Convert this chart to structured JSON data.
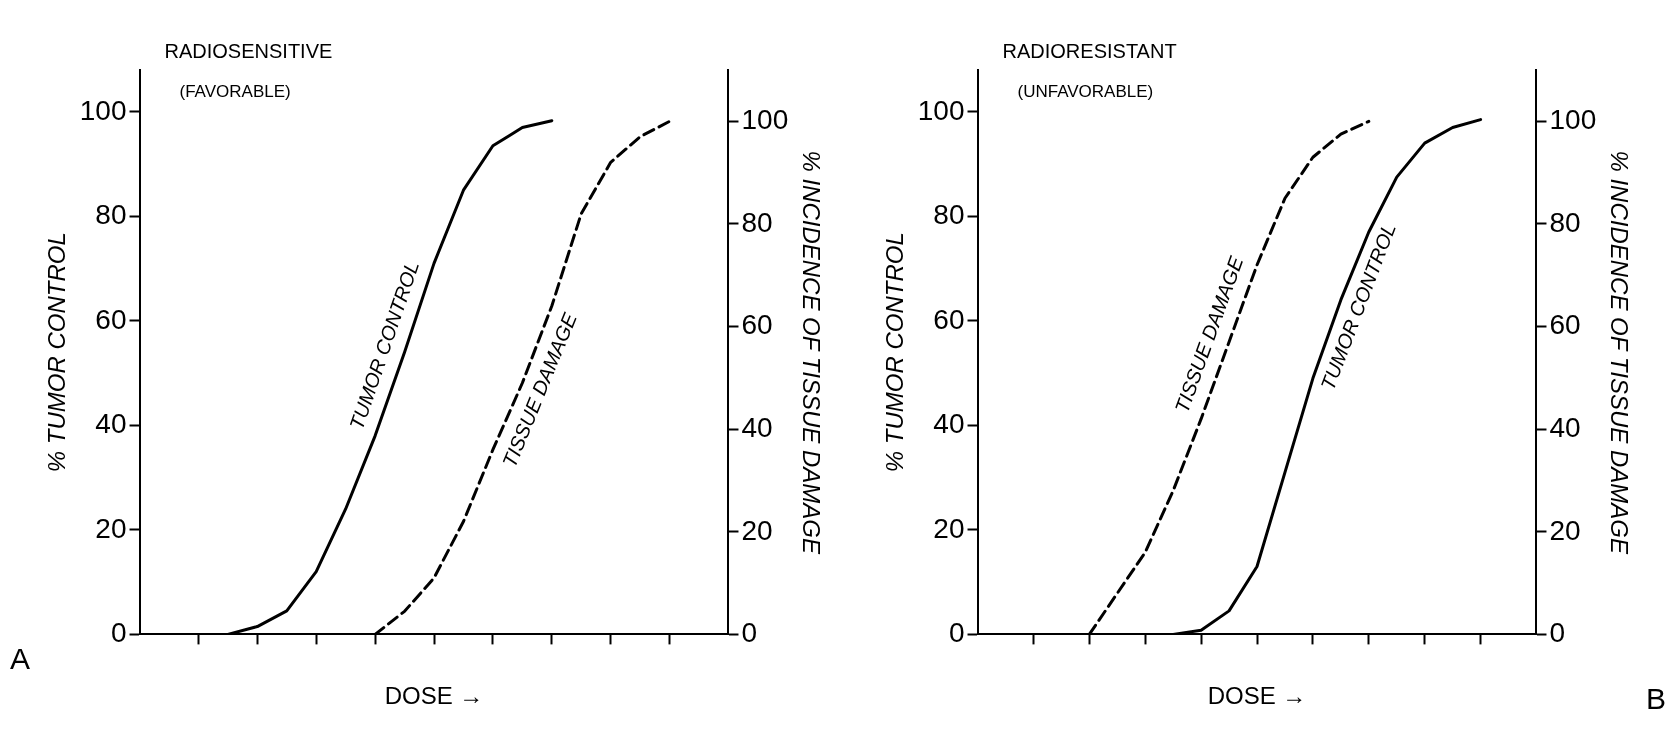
{
  "chart_data": [
    {
      "type": "line",
      "title": "RADIOSENSITIVE",
      "subtitle": "(FAVORABLE)",
      "xlabel": "DOSE →",
      "ylabel": "% TUMOR CONTROL",
      "y2label": "% INCIDENCE OF TISSUE DAMAGE",
      "annotations": [
        "A"
      ],
      "categories": [
        null,
        null,
        null,
        null,
        null,
        null,
        null,
        null,
        null,
        null,
        null,
        null,
        null,
        null,
        null,
        null,
        null,
        null,
        null,
        null,
        null
      ],
      "ylim": [
        0,
        108
      ],
      "yticks": [
        0,
        20,
        40,
        60,
        80,
        100
      ],
      "y2lim": [
        0,
        110
      ],
      "y2ticks": [
        0,
        20,
        40,
        60,
        80,
        100
      ],
      "grid": false,
      "legend": false,
      "marker": "none",
      "series": [
        {
          "name": "TUMOR CONTROL",
          "color": "#000000",
          "line_style": "solid",
          "values": [
            null,
            null,
            null,
            0,
            1.5,
            4.5,
            12,
            24,
            38,
            54,
            71,
            85,
            93.5,
            97,
            98.3,
            null,
            null,
            null,
            null,
            null,
            null
          ]
        },
        {
          "name": "TISSUE DAMAGE",
          "color": "#000000",
          "line_style": "dashed",
          "axis": "y2",
          "values": [
            null,
            null,
            null,
            null,
            null,
            null,
            null,
            null,
            0,
            4.5,
            11,
            22,
            36,
            49,
            64,
            82,
            92,
            97,
            100,
            null,
            null
          ]
        }
      ]
    },
    {
      "type": "line",
      "title": "RADIORESISTANT",
      "subtitle": "(UNFAVORABLE)",
      "xlabel": "DOSE →",
      "ylabel": "% TUMOR CONTROL",
      "y2label": "% INCIDENCE OF TISSUE DAMAGE",
      "annotations": [
        "B"
      ],
      "categories": [
        null,
        null,
        null,
        null,
        null,
        null,
        null,
        null,
        null,
        null,
        null,
        null,
        null,
        null,
        null,
        null,
        null,
        null,
        null,
        null,
        null
      ],
      "ylim": [
        0,
        108
      ],
      "yticks": [
        0,
        20,
        40,
        60,
        80,
        100
      ],
      "y2lim": [
        0,
        110
      ],
      "y2ticks": [
        0,
        20,
        40,
        60,
        80,
        100
      ],
      "grid": false,
      "legend": false,
      "marker": "none",
      "series": [
        {
          "name": "TISSUE DAMAGE",
          "color": "#000000",
          "line_style": "dashed",
          "axis": "y2",
          "values": [
            null,
            null,
            null,
            null,
            0,
            8,
            16,
            28,
            42,
            57,
            72,
            85,
            93,
            97.5,
            100,
            null,
            null,
            null,
            null,
            null,
            null
          ]
        },
        {
          "name": "TUMOR CONTROL",
          "color": "#000000",
          "line_style": "solid",
          "values": [
            null,
            null,
            null,
            null,
            null,
            null,
            null,
            0,
            0.8,
            4.5,
            13,
            31,
            49,
            64,
            77,
            87.5,
            94,
            97,
            98.5,
            null,
            null
          ]
        }
      ]
    }
  ]
}
